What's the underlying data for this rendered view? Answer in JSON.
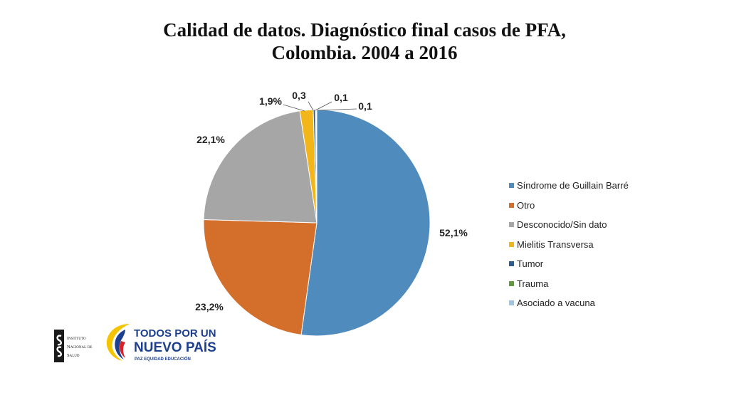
{
  "title_line1": "Calidad de datos. Diagnóstico final casos de PFA,",
  "title_line2": "Colombia. 2004 a 2016",
  "chart_data": {
    "type": "pie",
    "title": "Calidad de datos. Diagnóstico final casos de PFA, Colombia. 2004 a 2016",
    "legend_position": "right",
    "start": "top, clockwise",
    "slices": [
      {
        "name": "Síndrome de Guillain Barré",
        "value": 52.1,
        "label": "52,1%",
        "color": "#4f8bbd"
      },
      {
        "name": "Otro",
        "value": 23.2,
        "label": "23,2%",
        "color": "#d46f2b"
      },
      {
        "name": "Desconocido/Sin dato",
        "value": 22.1,
        "label": "22,1%",
        "color": "#a6a6a6"
      },
      {
        "name": "Mielitis Transversa",
        "value": 1.9,
        "label": "1,9%",
        "color": "#f2b61a"
      },
      {
        "name": "Tumor",
        "value": 0.3,
        "label": "0,3",
        "color": "#2c5d8f"
      },
      {
        "name": "Trauma",
        "value": 0.1,
        "label": "0,1",
        "color": "#5d9c3c"
      },
      {
        "name": "Asociado a vacuna",
        "value": 0.1,
        "label": "0,1",
        "color": "#9dc3e6"
      }
    ]
  },
  "logos": {
    "ins_line1": "Instituto",
    "ins_line2": "Nacional de",
    "ins_line3": "Salud",
    "tpu_line1": "TODOS POR UN",
    "tpu_line2": "NUEVO PAÍS",
    "tpu_line3": "PAZ   EQUIDAD   EDUCACIÓN"
  }
}
